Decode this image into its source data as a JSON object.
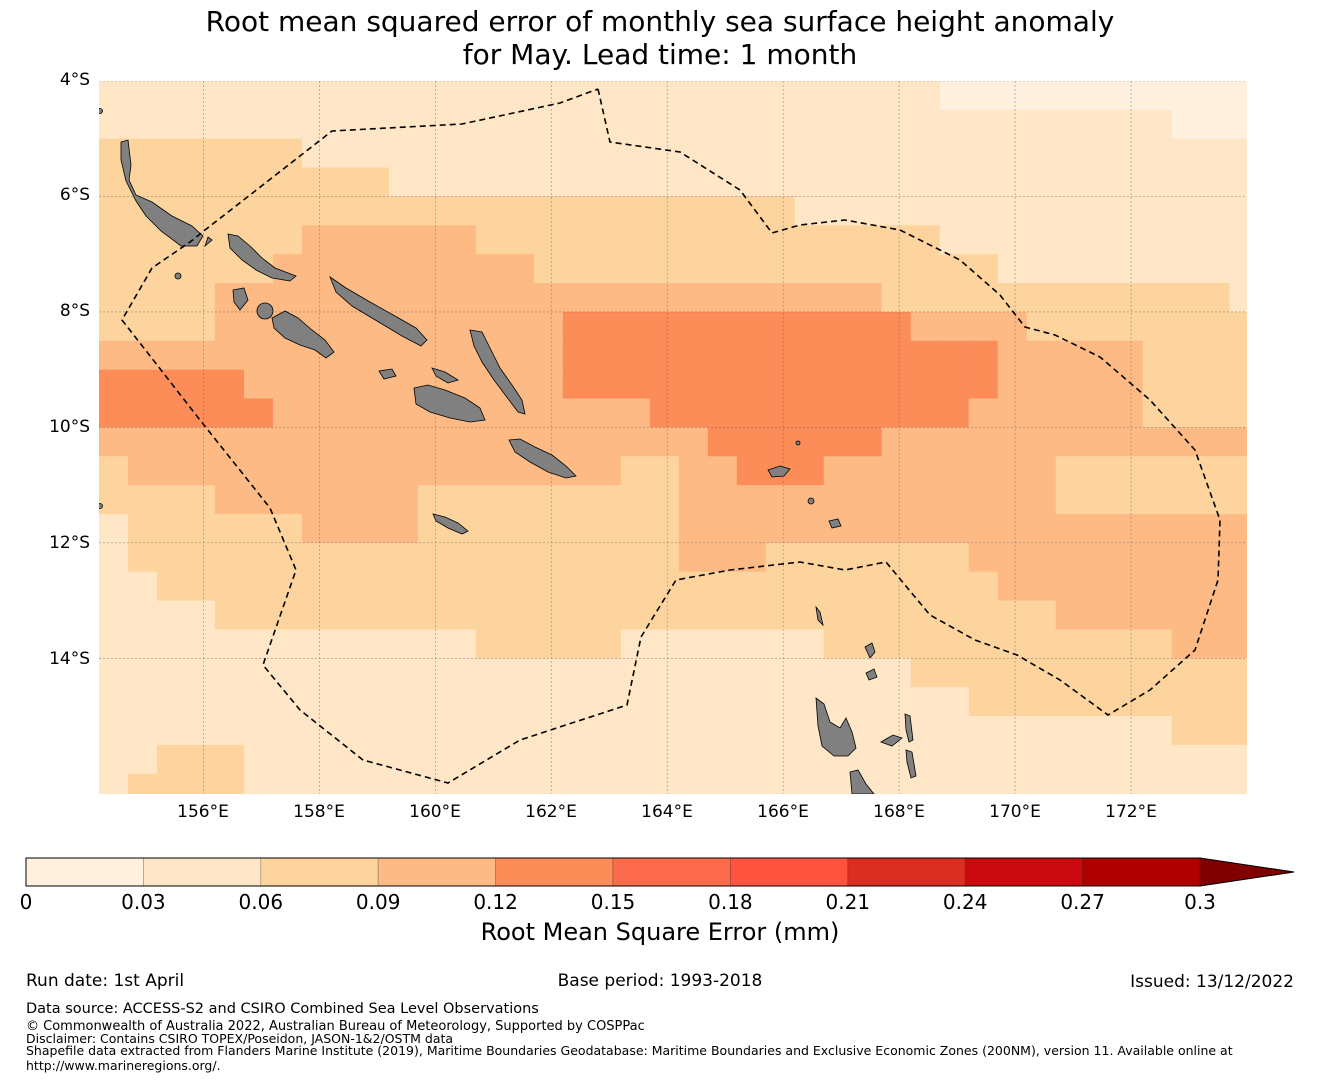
{
  "title": {
    "line1": "Root mean squared error of monthly sea surface height anomaly",
    "line2": "for May. Lead time: 1 month"
  },
  "map": {
    "lat_labels": [
      "4°S",
      "6°S",
      "8°S",
      "10°S",
      "12°S",
      "14°S"
    ],
    "lon_labels": [
      "156°E",
      "158°E",
      "160°E",
      "162°E",
      "164°E",
      "166°E",
      "168°E",
      "170°E",
      "172°E"
    ],
    "extent": {
      "lon": [
        154.2,
        174.0
      ],
      "lat": [
        -4.0,
        -16.35
      ]
    },
    "cell_size_deg": 0.5,
    "level_grid": [
      "1111111111111111111111111111100000000000",
      "1111111111111111111111111111111111111000",
      "2222222111111111111111111111111111111111",
      "2222222222111111111111111111111111111111",
      "2222222222222222222222221111111111111111",
      "2222222333333222222222222222211111111111",
      "2222223333333332222222222222222111111111",
      "2222333333333333333333333332222222222221",
      "2222333333333333444444444444333322222222",
      "3333333333333333444444444444444333332222",
      "4444433333333333444444444444444333332222",
      "4444443333333333333444444444443333332222",
      "3333333333333333333334444443333333333333",
      "2333333333333333332233444333333332222222",
      "2222333333322222222233333333333332222222",
      "1222222333322222222233333333333333333333",
      "1222222222222222222233322222223333333333",
      "1122222222222222222222222222222333333333",
      "1111222222222222222222222222222223333333",
      "1111111111111222221111111222222222222333",
      "1111111111111111111111111111222222222222",
      "1111111111111111111111111111112222222222",
      "1111111111111111111111111111111111111222",
      "1122211111111111111111111111111111111111",
      "1222211111111111111111111111111111111111"
    ]
  },
  "colorbar": {
    "levels": [
      0,
      0.03,
      0.06,
      0.09,
      0.12,
      0.15,
      0.18,
      0.21,
      0.24,
      0.27,
      0.3
    ],
    "tick_labels": [
      "0",
      "0.03",
      "0.06",
      "0.09",
      "0.12",
      "0.15",
      "0.18",
      "0.21",
      "0.24",
      "0.27",
      "0.3"
    ],
    "colors": [
      "#fff0df",
      "#fee6c6",
      "#fdd49e",
      "#fdba84",
      "#fc8d59",
      "#fc6a4c",
      "#ff5340",
      "#db2e20",
      "#c90a0e",
      "#b00000"
    ],
    "over_color": "#800000",
    "label": "Root Mean Square Error (mm)"
  },
  "footer": {
    "run_date": "Run date: 1st April",
    "base_period": "Base period: 1993-2018",
    "issued": "Issued: 13/12/2022",
    "data_source": "Data source: ACCESS-S2 and CSIRO Combined Sea Level Observations",
    "copyright": "© Commonwealth of Australia 2022, Australian Bureau of Meteorology, Supported by COSPPac",
    "disclaimer": "Disclaimer: Contains CSIRO TOPEX/Poseidon, JASON-1&2/OSTM data",
    "shapefile": "Shapefile data extracted from Flanders Marine Institute (2019), Maritime Boundaries Geodatabase: Maritime Boundaries and Exclusive Economic Zones (200NM), version 11. Available online at",
    "url": "http://www.marineregions.org/."
  },
  "colors": {
    "land": "#808080",
    "eez_line": "#000000",
    "grid": "#555555"
  }
}
